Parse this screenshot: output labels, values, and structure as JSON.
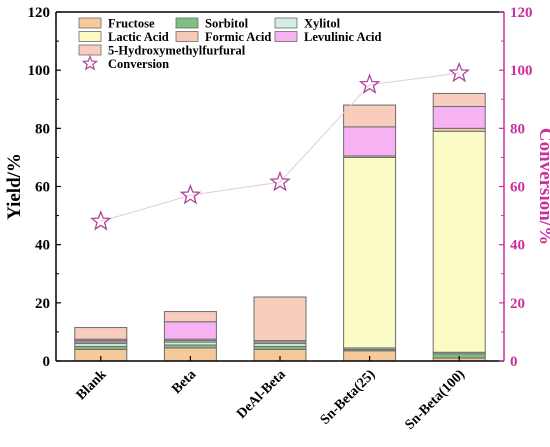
{
  "chart_data": {
    "type": "bar",
    "stacked": true,
    "categories": [
      "Blank",
      "Beta",
      "DeAl-Beta",
      "Sn-Beta(25)",
      "Sn-Beta(100)"
    ],
    "ylabel": "Yield/%",
    "y2label": "Conversion/%",
    "ylim": [
      0,
      120
    ],
    "y2lim": [
      0,
      120
    ],
    "yticks": [
      0,
      20,
      40,
      60,
      80,
      100,
      120
    ],
    "grid": false,
    "legend_position": "top-left inside",
    "colors": {
      "axis_left": "#000000",
      "axis_right": "#cc2f9c",
      "bar_edge": "#6b6b6b",
      "conversion_marker": "#b0449a",
      "conversion_line": "#e6c8e0"
    },
    "series": [
      {
        "name": "Fructose",
        "color": "#f6c99a",
        "values": [
          4.0,
          4.5,
          4.0,
          3.5,
          1.0
        ]
      },
      {
        "name": "Sorbitol",
        "color": "#7fbf7f",
        "values": [
          1.0,
          1.0,
          1.0,
          0.5,
          1.5
        ]
      },
      {
        "name": "Xylitol",
        "color": "#d4ece6",
        "values": [
          1.0,
          1.0,
          1.0,
          0.5,
          0.5
        ]
      },
      {
        "name": "Lactic Acid",
        "color": "#fbfbc6",
        "values": [
          0.5,
          0.5,
          0.5,
          65.5,
          76.0
        ]
      },
      {
        "name": "Formic Acid",
        "color": "#f8c9b6",
        "values": [
          0.5,
          0.5,
          0.5,
          0.5,
          1.0
        ]
      },
      {
        "name": "Levulinic Acid",
        "color": "#f6b2f2",
        "values": [
          0.5,
          6.0,
          0.0,
          10.0,
          7.5
        ]
      },
      {
        "name": "5-Hydroxymethylfurfural",
        "color": "#f9cdbd",
        "values": [
          4.0,
          3.5,
          15.0,
          7.5,
          4.5
        ]
      }
    ],
    "conversion": {
      "name": "Conversion",
      "values": [
        48,
        57,
        61.5,
        95,
        99
      ]
    }
  }
}
